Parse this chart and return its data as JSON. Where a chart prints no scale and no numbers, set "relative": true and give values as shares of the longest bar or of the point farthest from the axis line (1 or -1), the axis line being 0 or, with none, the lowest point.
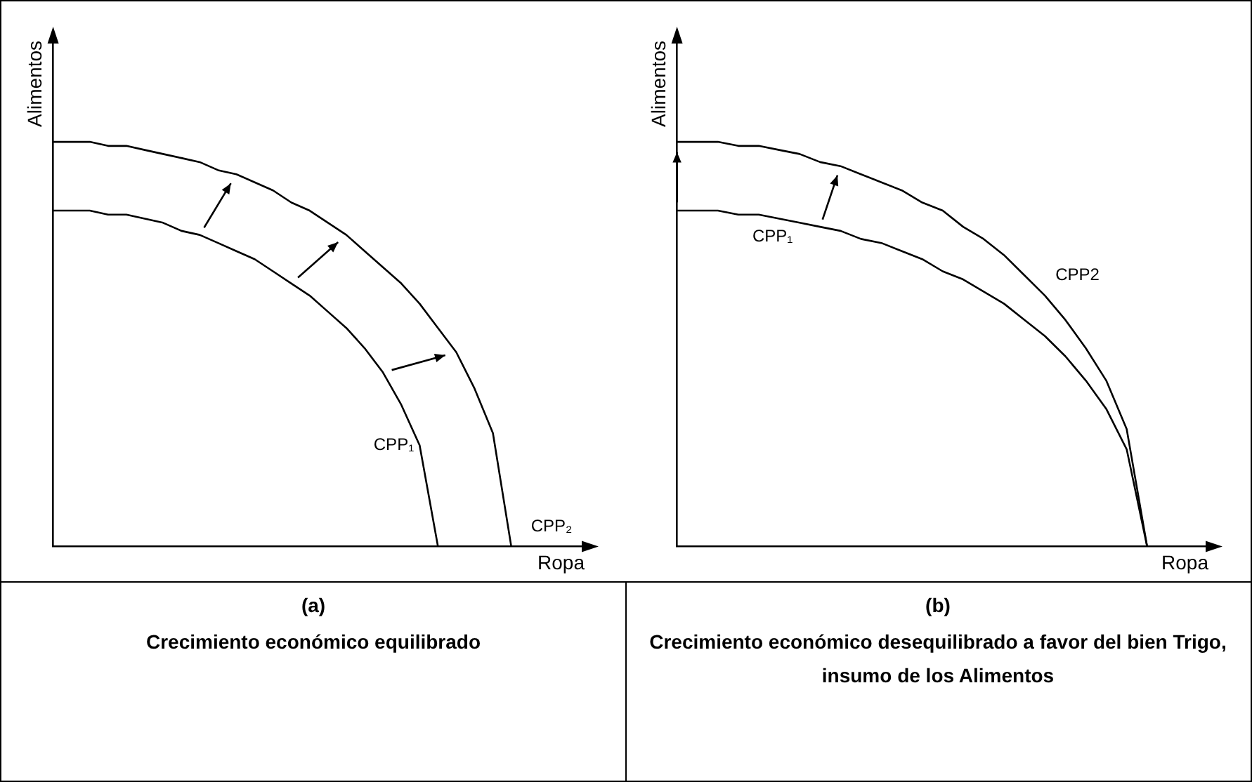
{
  "chart_data": [
    {
      "type": "line",
      "title": "(a)",
      "subtitle": "Crecimiento económico equilibrado",
      "xlabel": "Ropa",
      "ylabel": "Alimentos",
      "relative": true,
      "categories": [
        null,
        null,
        null,
        null,
        null,
        null,
        null,
        null,
        null,
        null,
        null,
        null,
        null,
        null,
        null,
        null,
        null,
        null,
        null,
        null,
        null,
        null,
        null,
        null,
        null,
        null,
        null,
        null,
        null,
        null
      ],
      "series": [
        {
          "name": "CPP₁",
          "color": "#000000",
          "values": [
            0.83,
            0.83,
            0.83,
            0.82,
            0.82,
            0.81,
            0.8,
            0.78,
            0.77,
            0.75,
            0.73,
            0.71,
            0.68,
            0.65,
            0.62,
            0.58,
            0.54,
            0.49,
            0.43,
            0.35,
            0.25,
            0,
            null,
            null,
            null,
            null,
            null,
            null,
            null,
            null
          ]
        },
        {
          "name": "CPP₂",
          "color": "#000000",
          "values": [
            1,
            1,
            1,
            0.99,
            0.99,
            0.98,
            0.97,
            0.96,
            0.95,
            0.93,
            0.92,
            0.9,
            0.88,
            0.85,
            0.83,
            0.8,
            0.77,
            0.73,
            0.69,
            0.65,
            0.6,
            0.54,
            0.48,
            0.39,
            0.28,
            0,
            null,
            null,
            null,
            null
          ]
        }
      ]
    },
    {
      "type": "line",
      "title": "(b)",
      "subtitle": "Crecimiento económico desequilibrado a favor del bien Trigo, insumo de los  Alimentos",
      "xlabel": "Ropa",
      "ylabel": "Alimentos",
      "relative": true,
      "categories": [
        null,
        null,
        null,
        null,
        null,
        null,
        null,
        null,
        null,
        null,
        null,
        null,
        null,
        null,
        null,
        null,
        null,
        null,
        null,
        null,
        null,
        null,
        null,
        null,
        null,
        null,
        null
      ],
      "series": [
        {
          "name": "CPP₁",
          "color": "#000000",
          "values": [
            0.83,
            0.83,
            0.83,
            0.82,
            0.82,
            0.81,
            0.8,
            0.79,
            0.78,
            0.76,
            0.75,
            0.73,
            0.71,
            0.68,
            0.66,
            0.63,
            0.6,
            0.56,
            0.52,
            0.47,
            0.41,
            0.34,
            0.24,
            0,
            null,
            null,
            null
          ]
        },
        {
          "name": "CPP2",
          "color": "#000000",
          "values": [
            1,
            1,
            1,
            0.99,
            0.99,
            0.98,
            0.97,
            0.95,
            0.94,
            0.92,
            0.9,
            0.88,
            0.85,
            0.83,
            0.79,
            0.76,
            0.72,
            0.67,
            0.62,
            0.56,
            0.49,
            0.41,
            0.29,
            0,
            null,
            null,
            null
          ]
        }
      ]
    }
  ]
}
